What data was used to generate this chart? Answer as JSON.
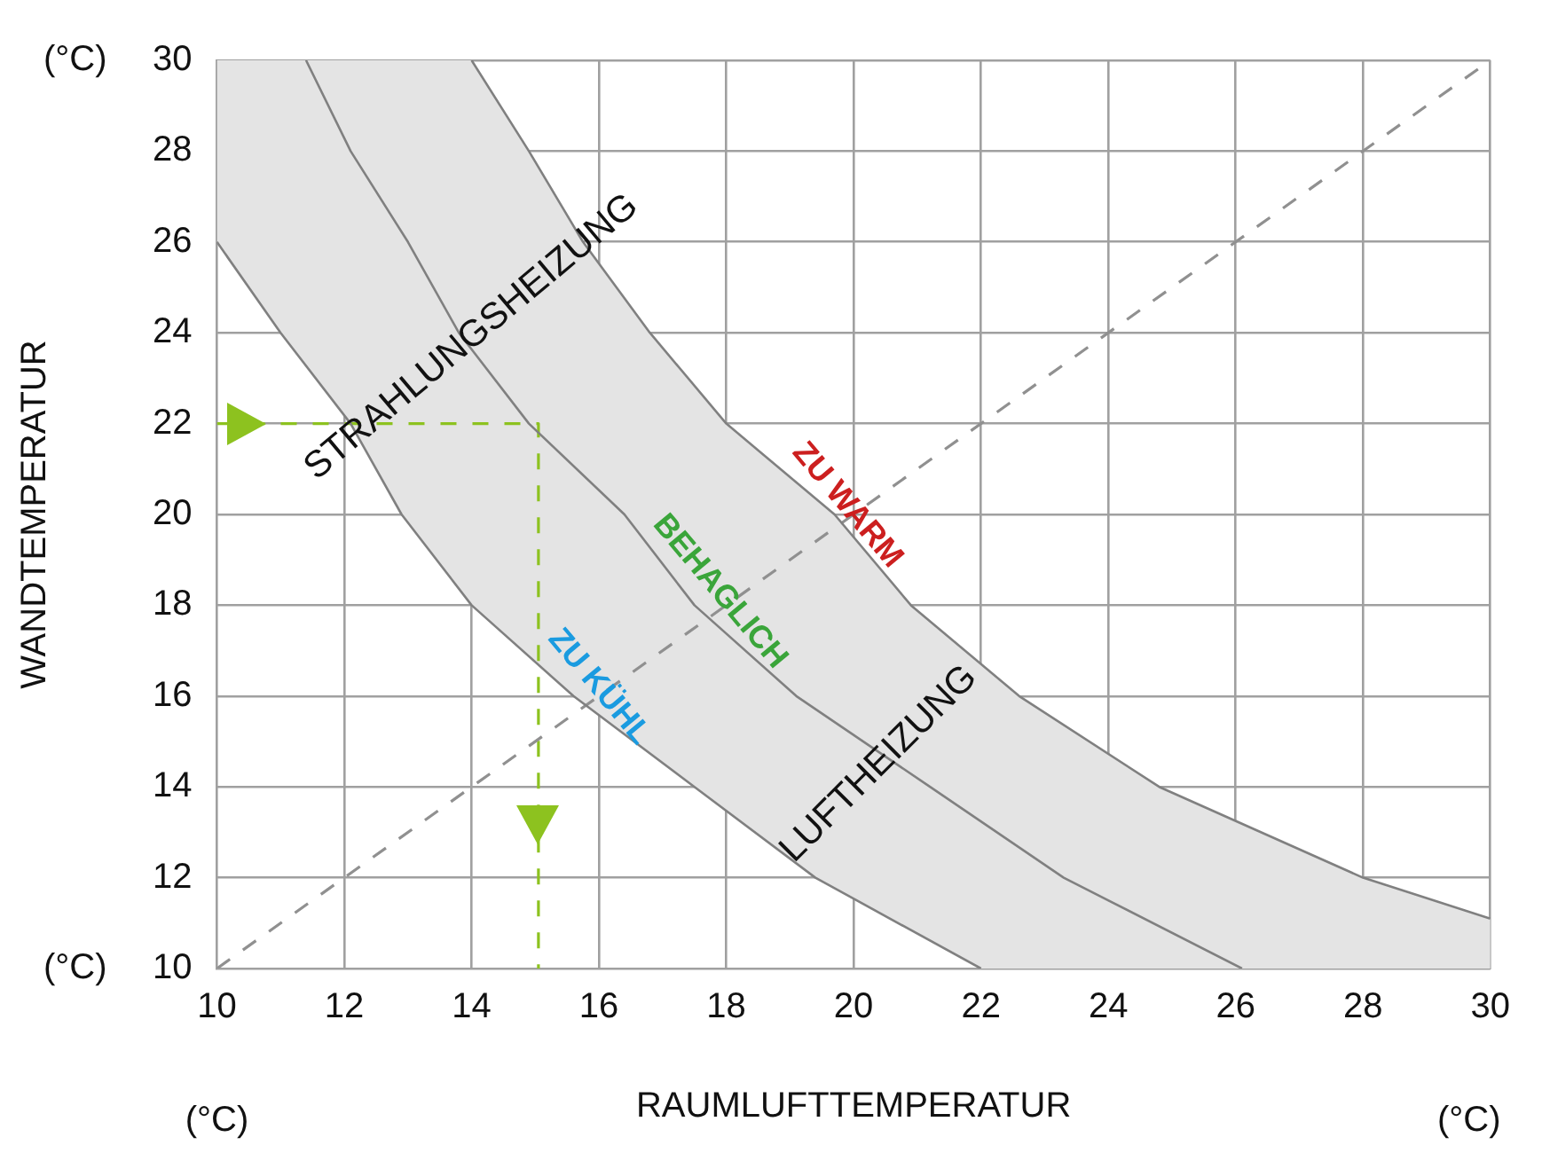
{
  "chart_data": {
    "type": "line",
    "xlabel": "RAUMLUFTTEMPERATUR",
    "ylabel": "WANDTEMPERATUR",
    "xlim": [
      10,
      30
    ],
    "ylim": [
      10,
      30
    ],
    "xticks": [
      10,
      12,
      14,
      16,
      18,
      20,
      22,
      24,
      26,
      28,
      30
    ],
    "yticks": [
      10,
      12,
      14,
      16,
      18,
      20,
      22,
      24,
      26,
      28,
      30
    ],
    "grid": true,
    "marker": "none",
    "series": [
      {
        "color": "#808080",
        "line_style": "solid",
        "x": [
          10,
          11,
          12.1,
          12.9,
          14,
          15.6,
          17.5,
          19.4,
          22
        ],
        "values": [
          26,
          24,
          22,
          20,
          18,
          16,
          14,
          12,
          10
        ]
      },
      {
        "color": "#808080",
        "line_style": "solid",
        "x": [
          11.4,
          12.1,
          13,
          13.8,
          14.9,
          16.4,
          17.5,
          19.1,
          21.2,
          23.3,
          26.1
        ],
        "values": [
          30,
          28,
          26,
          24,
          22,
          20,
          18,
          16,
          14,
          12,
          10
        ]
      },
      {
        "color": "#808080",
        "line_style": "solid",
        "x": [
          14,
          14.9,
          15.75,
          16.8,
          18,
          19.7,
          20.9,
          22.6,
          24.8,
          28,
          30
        ],
        "values": [
          30,
          28,
          26,
          24,
          22,
          20,
          18,
          16,
          14,
          12,
          11.1
        ]
      },
      {
        "color": "#909090",
        "line_style": "dashed",
        "x": [
          10,
          30
        ],
        "values": [
          10,
          30
        ]
      },
      {
        "color": "#8dc21f",
        "line_style": "dashed",
        "x": [
          10,
          15.05,
          15.05
        ],
        "values": [
          22,
          22,
          10
        ]
      }
    ],
    "annotations": [
      "(°C)",
      "(°C)",
      "(°C)",
      "(°C)",
      "STRAHLUNGSHEIZUNG",
      "ZU WARM",
      "BEHAGLICH",
      "ZU KÜHL",
      "LUFTHEIZUNG"
    ]
  }
}
